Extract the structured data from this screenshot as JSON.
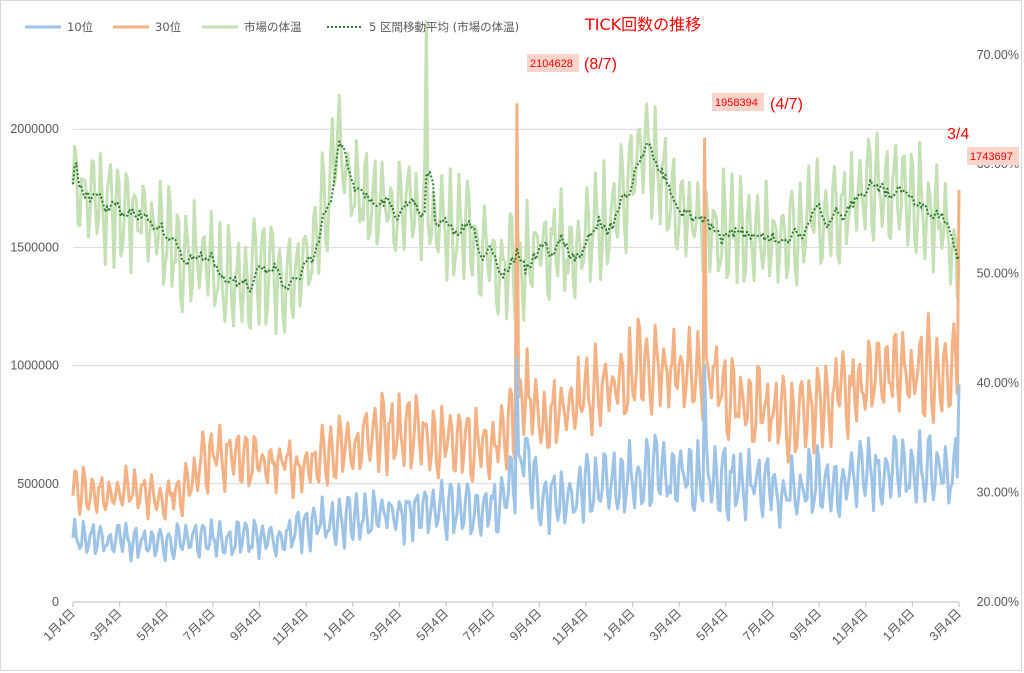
{
  "chart_data": {
    "type": "line",
    "title": "TICK回数の推移",
    "legend": [
      "10位",
      "30位",
      "市場の体温",
      "5 区間移動平均 (市場の体温)"
    ],
    "legend_position": "top",
    "colors": {
      "rank10": "#9dc3e6",
      "rank30": "#f4b183",
      "temp": "#c5e0b4",
      "ma": "#2e7d32",
      "annotation": "#ff0000",
      "annotation_bg": "#fbd5cc"
    },
    "x_tick_labels": [
      "1月4日",
      "3月4日",
      "5月4日",
      "7月4日",
      "9月4日",
      "11月4日",
      "1月4日",
      "3月4日",
      "5月4日",
      "7月4日",
      "9月4日",
      "11月4日",
      "1月4日",
      "3月4日",
      "5月4日",
      "7月4日",
      "9月4日",
      "11月4日",
      "1月4日",
      "3月4日"
    ],
    "y_left": {
      "min": 0,
      "max": 2500000,
      "ticks": [
        0,
        500000,
        1000000,
        1500000,
        2000000
      ],
      "tick_labels": [
        "0",
        "500000",
        "1000000",
        "1500000",
        "2000000"
      ]
    },
    "y_right": {
      "min": 0.2,
      "max": 0.74,
      "ticks": [
        0.2,
        0.3,
        0.4,
        0.5,
        0.6,
        0.7
      ],
      "tick_labels": [
        "20.00%",
        "30.00%",
        "40.00%",
        "50.00%",
        "60.00%",
        "70.00%"
      ]
    },
    "grid": "horizontal",
    "series_profile": {
      "n_points": 520,
      "rank10_levels": [
        [
          0,
          260000
        ],
        [
          60,
          255000
        ],
        [
          120,
          270000
        ],
        [
          140,
          330000
        ],
        [
          200,
          380000
        ],
        [
          250,
          400000
        ],
        [
          265,
          650000
        ],
        [
          275,
          430000
        ],
        [
          300,
          470000
        ],
        [
          340,
          540000
        ],
        [
          380,
          520000
        ],
        [
          420,
          470000
        ],
        [
          480,
          560000
        ],
        [
          519,
          560000
        ]
      ],
      "rank30_levels": [
        [
          0,
          470000
        ],
        [
          60,
          450000
        ],
        [
          80,
          620000
        ],
        [
          140,
          580000
        ],
        [
          180,
          720000
        ],
        [
          250,
          660000
        ],
        [
          265,
          900000
        ],
        [
          275,
          760000
        ],
        [
          300,
          860000
        ],
        [
          340,
          1000000
        ],
        [
          380,
          900000
        ],
        [
          420,
          780000
        ],
        [
          480,
          960000
        ],
        [
          519,
          1000000
        ]
      ],
      "temp_levels": [
        [
          0,
          0.575
        ],
        [
          30,
          0.56
        ],
        [
          60,
          0.52
        ],
        [
          100,
          0.49
        ],
        [
          140,
          0.51
        ],
        [
          155,
          0.62
        ],
        [
          170,
          0.57
        ],
        [
          220,
          0.54
        ],
        [
          260,
          0.51
        ],
        [
          300,
          0.53
        ],
        [
          320,
          0.56
        ],
        [
          335,
          0.62
        ],
        [
          360,
          0.55
        ],
        [
          400,
          0.53
        ],
        [
          440,
          0.55
        ],
        [
          470,
          0.58
        ],
        [
          500,
          0.56
        ],
        [
          519,
          0.52
        ]
      ]
    },
    "annotations": [
      {
        "label": "2104628",
        "paren": "(8/7)",
        "value": 2104628,
        "date": "8/7"
      },
      {
        "label": "1958394",
        "paren": "(4/7)",
        "value": 1958394,
        "date": "4/7"
      },
      {
        "label": "1743697",
        "paren": "3/4",
        "value": 1743697,
        "date": "3/4"
      }
    ]
  }
}
